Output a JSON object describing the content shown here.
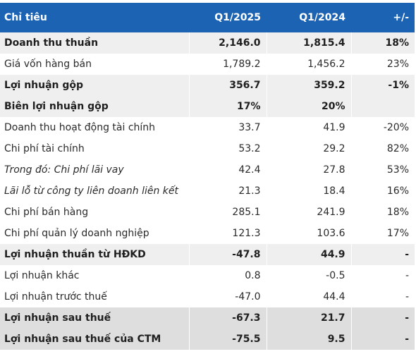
{
  "header": [
    "Chỉ tiêu",
    "Q1/2025",
    "Q1/2024",
    "+/-"
  ],
  "rows": [
    {
      "label": "Doanh thu thuần",
      "q1_2025": "2,146.0",
      "q1_2024": "1,815.4",
      "change": "18%"
    },
    {
      "label": "Giá vốn hàng bán",
      "q1_2025": "1,789.2",
      "q1_2024": "1,456.2",
      "change": "23%"
    },
    {
      "label": "Lợi nhuận gộp",
      "q1_2025": "356.7",
      "q1_2024": "359.2",
      "change": "-1%"
    },
    {
      "label": "Biên lợi nhuận gộp",
      "q1_2025": "17%",
      "q1_2024": "20%",
      "change": ""
    },
    {
      "label": "Doanh thu hoạt động tài chính",
      "q1_2025": "33.7",
      "q1_2024": "41.9",
      "change": "-20%"
    },
    {
      "label": "Chi phí tài chính",
      "q1_2025": "53.2",
      "q1_2024": "29.2",
      "change": "82%"
    },
    {
      "label": "Trong đó: Chi phí lãi vay",
      "q1_2025": "42.4",
      "q1_2024": "27.8",
      "change": "53%"
    },
    {
      "label": "Lãi lỗ từ công ty liên doanh liên kết",
      "q1_2025": "21.3",
      "q1_2024": "18.4",
      "change": "16%"
    },
    {
      "label": "Chi phí bán hàng",
      "q1_2025": "285.1",
      "q1_2024": "241.9",
      "change": "18%"
    },
    {
      "label": "Chi phí quản lý doanh nghiệp",
      "q1_2025": "121.3",
      "q1_2024": "103.6",
      "change": "17%"
    },
    {
      "label": "Lợi nhuận thuần từ HĐKD",
      "q1_2025": "-47.8",
      "q1_2024": "44.9",
      "change": "-"
    },
    {
      "label": "Lợi nhuận khác",
      "q1_2025": "0.8",
      "q1_2024": "-0.5",
      "change": "-"
    },
    {
      "label": "Lợi nhuận trước thuế",
      "q1_2025": "-47.0",
      "q1_2024": "44.4",
      "change": "-"
    },
    {
      "label": "Lợi nhuận sau thuế",
      "q1_2025": "-67.3",
      "q1_2024": "21.7",
      "change": "-"
    },
    {
      "label": "Lợi nhuận sau thuế của CTM",
      "q1_2025": "-75.5",
      "q1_2024": "9.5",
      "change": "-"
    }
  ],
  "colors": {
    "header_bg": "#1d63b3",
    "header_text": "#ffffff",
    "row_shade": "#efefef",
    "row_shade_dark": "#dedede"
  }
}
